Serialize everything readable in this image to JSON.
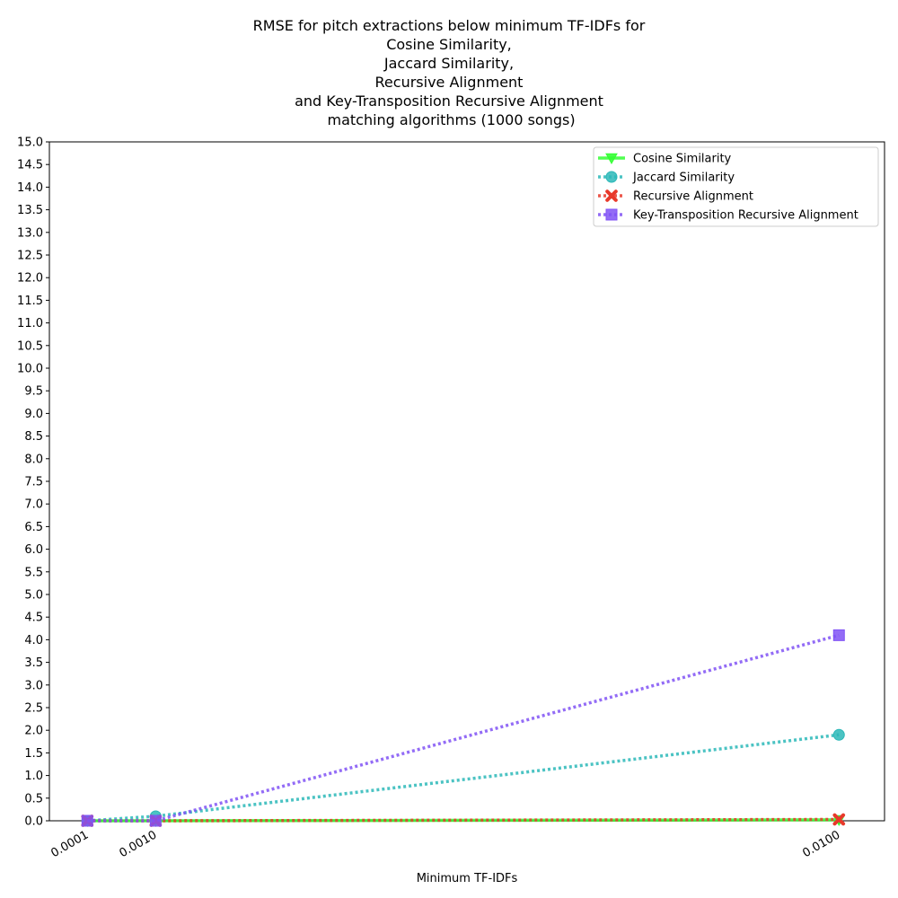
{
  "chart_data": {
    "type": "line",
    "title": "RMSE for pitch extractions below minimum TF-IDFs for\nCosine Similarity,\nJaccard Similarity,\nRecursive Alignment\nand Key-Transposition Recursive Alignment\n matching algorithms (1000 songs)",
    "xlabel": "Minimum TF-IDFs",
    "ylabel": "",
    "x": [
      0.0001,
      0.001,
      0.01
    ],
    "x_tick_labels": [
      "0.0001",
      "0.0010",
      "0.0100"
    ],
    "xlim": [
      -0.0004,
      0.0106
    ],
    "ylim": [
      0,
      15
    ],
    "y_ticks": [
      "0.0",
      "0.5",
      "1.0",
      "1.5",
      "2.0",
      "2.5",
      "3.0",
      "3.5",
      "4.0",
      "4.5",
      "5.0",
      "5.5",
      "6.0",
      "6.5",
      "7.0",
      "7.5",
      "8.0",
      "8.5",
      "9.0",
      "9.5",
      "10.0",
      "10.5",
      "11.0",
      "11.5",
      "12.0",
      "12.5",
      "13.0",
      "13.5",
      "14.0",
      "14.5",
      "15.0"
    ],
    "grid": false,
    "legend_position": "top-right",
    "series": [
      {
        "name": "Cosine Similarity",
        "values": [
          0.0,
          0.0,
          0.02
        ],
        "color": "#33ff33",
        "marker": "triangle-down",
        "line_style": "solid"
      },
      {
        "name": "Jaccard Similarity",
        "values": [
          0.0,
          0.1,
          1.9
        ],
        "color": "#2cb8b8",
        "marker": "circle",
        "line_style": "dotted"
      },
      {
        "name": "Recursive Alignment",
        "values": [
          0.0,
          0.0,
          0.03
        ],
        "color": "#e8392b",
        "marker": "x",
        "line_style": "dotted"
      },
      {
        "name": "Key-Transposition Recursive Alignment",
        "values": [
          0.0,
          0.0,
          4.1
        ],
        "color": "#8052f5",
        "marker": "square",
        "line_style": "dotted"
      }
    ]
  }
}
